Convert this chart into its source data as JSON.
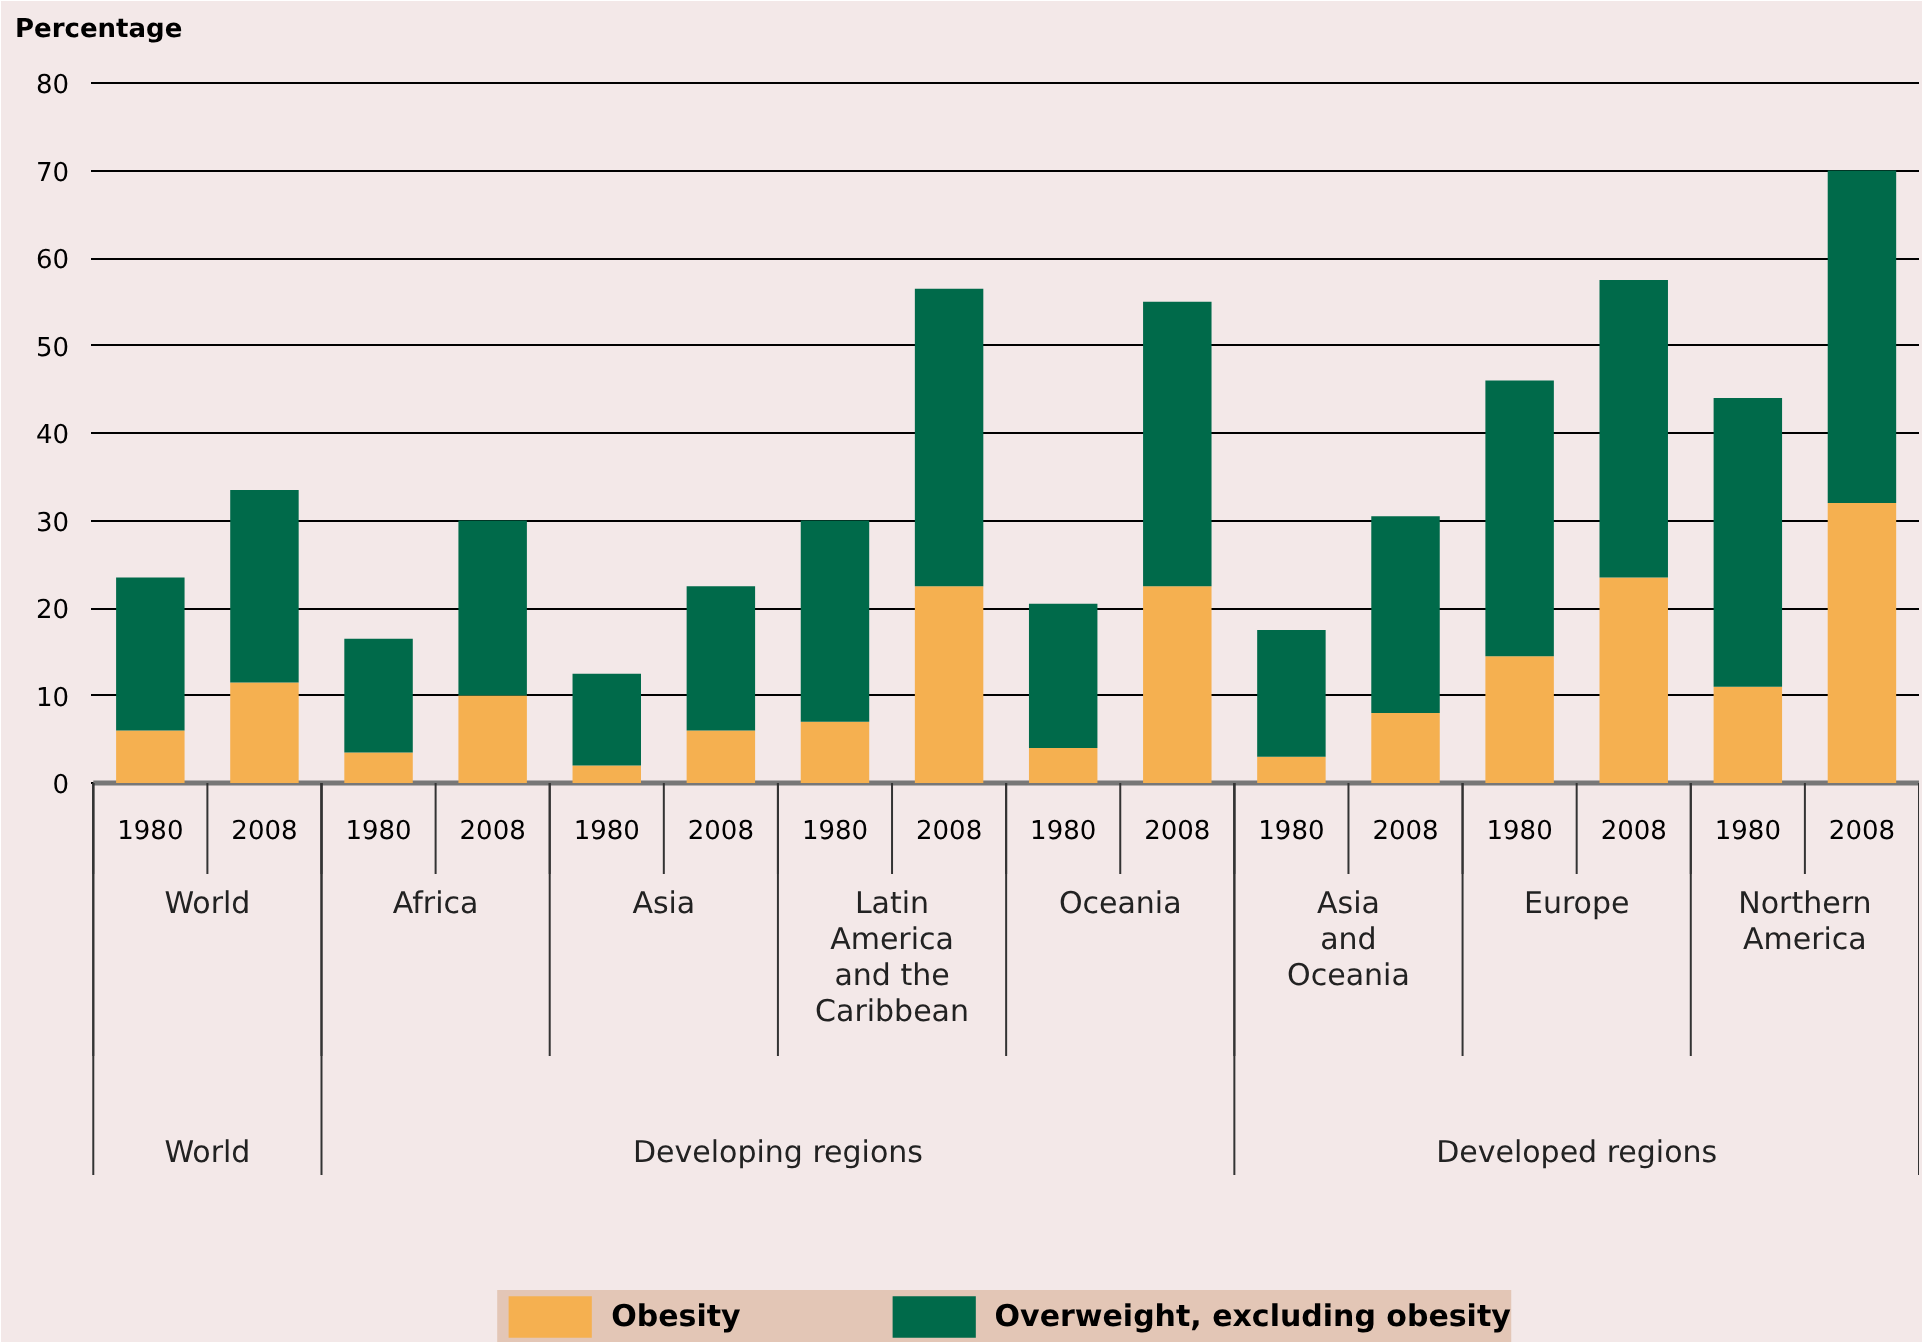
{
  "chart_data": {
    "type": "bar",
    "stacked": true,
    "ylabel": "Percentage",
    "categories": [
      "1980",
      "2008",
      "1980",
      "2008",
      "1980",
      "2008",
      "1980",
      "2008",
      "1980",
      "2008",
      "1980",
      "2008",
      "1980",
      "2008",
      "1980",
      "2008"
    ],
    "series": [
      {
        "name": "Obesity",
        "color": "#f5b050",
        "values": [
          6,
          11.5,
          3.5,
          10,
          2,
          6,
          7,
          22.5,
          4,
          22.5,
          3,
          8,
          14.5,
          23.5,
          11,
          32
        ]
      },
      {
        "name": "Overweight, excluding obesity",
        "color": "#006a4a",
        "values": [
          17.5,
          22,
          13,
          20,
          10.5,
          16.5,
          23,
          34,
          16.5,
          32.5,
          14.5,
          22.5,
          31.5,
          34,
          33,
          38
        ]
      }
    ],
    "annotations": [
      "World",
      "Africa",
      "Asia",
      "Latin America and the Caribbean",
      "Oceania",
      "Asia and Oceania",
      "Europe",
      "Northern America",
      "World",
      "Developing regions",
      "Developed regions"
    ],
    "ylim": [
      0,
      80
    ],
    "yticks": [
      0,
      10,
      20,
      30,
      40,
      50,
      60,
      70,
      80
    ],
    "grid": "y",
    "legend": "bottom"
  }
}
